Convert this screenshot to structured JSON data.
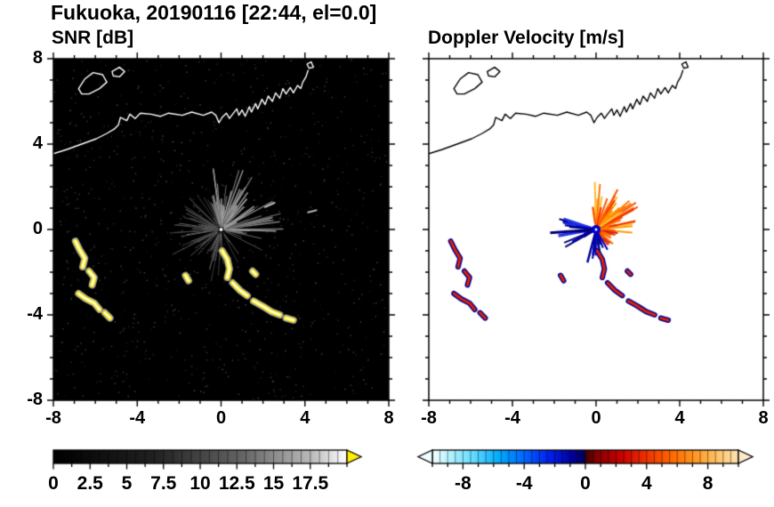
{
  "title": "Fukuoka, 20190116 [22:44, el=0.0]",
  "coastline": {
    "main": [
      [
        -8,
        3.55
      ],
      [
        -7.35,
        3.75
      ],
      [
        -6.65,
        4.0
      ],
      [
        -5.95,
        4.25
      ],
      [
        -5.45,
        4.5
      ],
      [
        -5.1,
        4.7
      ],
      [
        -4.9,
        4.9
      ],
      [
        -4.8,
        5.25
      ],
      [
        -4.5,
        5.1
      ],
      [
        -4.35,
        5.4
      ],
      [
        -4.1,
        5.2
      ],
      [
        -3.85,
        5.45
      ],
      [
        -3.35,
        5.4
      ],
      [
        -2.9,
        5.3
      ],
      [
        -2.5,
        5.45
      ],
      [
        -1.85,
        5.35
      ],
      [
        -1.4,
        5.5
      ],
      [
        -0.85,
        5.35
      ],
      [
        -0.45,
        5.5
      ],
      [
        -0.25,
        5.35
      ],
      [
        -0.1,
        5.0
      ],
      [
        0.05,
        5.25
      ],
      [
        0.25,
        5.45
      ],
      [
        0.4,
        5.2
      ],
      [
        0.55,
        5.4
      ],
      [
        0.75,
        5.65
      ],
      [
        0.85,
        5.35
      ],
      [
        1.0,
        5.6
      ],
      [
        1.15,
        5.3
      ],
      [
        1.35,
        5.75
      ],
      [
        1.45,
        5.5
      ],
      [
        1.65,
        5.9
      ],
      [
        1.75,
        5.65
      ],
      [
        1.95,
        6.1
      ],
      [
        2.1,
        5.85
      ],
      [
        2.25,
        6.25
      ],
      [
        2.45,
        6.0
      ],
      [
        2.6,
        6.4
      ],
      [
        2.8,
        6.15
      ],
      [
        2.95,
        6.6
      ],
      [
        3.1,
        6.35
      ],
      [
        3.3,
        6.65
      ],
      [
        3.45,
        6.4
      ],
      [
        3.65,
        6.75
      ],
      [
        3.8,
        6.6
      ],
      [
        3.9,
        6.9
      ],
      [
        4.05,
        7.15
      ],
      [
        4.15,
        7.45
      ]
    ],
    "islands": [
      [
        [
          -6.8,
          6.6
        ],
        [
          -6.5,
          7.05
        ],
        [
          -6.1,
          7.35
        ],
        [
          -5.65,
          7.25
        ],
        [
          -5.45,
          6.9
        ],
        [
          -5.8,
          6.6
        ],
        [
          -6.3,
          6.35
        ],
        [
          -6.65,
          6.35
        ]
      ],
      [
        [
          -5.2,
          7.4
        ],
        [
          -4.85,
          7.6
        ],
        [
          -4.6,
          7.4
        ],
        [
          -4.85,
          7.15
        ],
        [
          -5.15,
          7.2
        ]
      ],
      [
        [
          4.1,
          7.75
        ],
        [
          4.3,
          7.85
        ],
        [
          4.4,
          7.6
        ],
        [
          4.2,
          7.55
        ]
      ]
    ]
  },
  "echoes": [
    {
      "pts": [
        [
          -6.95,
          -0.55
        ],
        [
          -6.75,
          -0.95
        ],
        [
          -6.5,
          -1.35
        ],
        [
          -6.6,
          -1.75
        ]
      ]
    },
    {
      "pts": [
        [
          -6.3,
          -1.95
        ],
        [
          -6.05,
          -2.25
        ],
        [
          -6.15,
          -2.6
        ]
      ]
    },
    {
      "pts": [
        [
          -6.8,
          -3.0
        ],
        [
          -6.45,
          -3.25
        ],
        [
          -6.05,
          -3.45
        ],
        [
          -5.8,
          -3.75
        ]
      ]
    },
    {
      "pts": [
        [
          -5.55,
          -3.9
        ],
        [
          -5.3,
          -4.15
        ]
      ]
    },
    {
      "pts": [
        [
          0.05,
          -1.0
        ],
        [
          0.3,
          -1.4
        ],
        [
          0.4,
          -1.85
        ],
        [
          0.3,
          -2.25
        ]
      ]
    },
    {
      "pts": [
        [
          0.55,
          -2.5
        ],
        [
          0.9,
          -2.85
        ],
        [
          1.25,
          -3.1
        ]
      ]
    },
    {
      "pts": [
        [
          1.55,
          -3.35
        ],
        [
          2.0,
          -3.6
        ],
        [
          2.4,
          -3.85
        ],
        [
          2.8,
          -4.0
        ]
      ]
    },
    {
      "pts": [
        [
          3.1,
          -4.15
        ],
        [
          3.45,
          -4.25
        ]
      ]
    },
    {
      "pts": [
        [
          -1.7,
          -2.15
        ],
        [
          -1.55,
          -2.4
        ]
      ]
    },
    {
      "pts": [
        [
          1.5,
          -1.95
        ],
        [
          1.65,
          -2.1
        ]
      ]
    }
  ],
  "chart_data": [
    {
      "type": "heatmap",
      "title": "SNR [dB]",
      "xlim": [
        -8,
        8
      ],
      "ylim": [
        -8,
        8
      ],
      "xticks": [
        -8,
        -4,
        0,
        4,
        8
      ],
      "yticks": [
        8,
        4,
        0,
        -4,
        -8
      ],
      "minor_tick_step": 1,
      "background": "#000000",
      "coast_color": "#ffffff",
      "noise": {
        "n": 900,
        "seed": 5,
        "gray": [
          15,
          70
        ]
      },
      "fan": [
        {
          "n": 70,
          "a0": 0,
          "a1": 360,
          "len": [
            0.5,
            2.2
          ],
          "gray": [
            50,
            115
          ],
          "lw": 1,
          "seed": 11
        },
        {
          "n": 55,
          "a0": -10,
          "a1": 110,
          "len": [
            0.8,
            3.0
          ],
          "gray": [
            90,
            175
          ],
          "lw": 1.4,
          "seed": 23
        },
        {
          "n": 14,
          "a0": 150,
          "a1": 260,
          "len": [
            1.2,
            2.6
          ],
          "gray": [
            45,
            95
          ],
          "lw": 1,
          "seed": 37
        }
      ],
      "echo_style": {
        "fringe": "#9a9a9a",
        "fringe_lw": 8,
        "body": "#ffee00",
        "body_lw": 5,
        "core": "#ffffff",
        "core_lw": 2
      },
      "dashes": [
        {
          "pts": [
            [
              2.1,
              1.05
            ],
            [
              2.55,
              1.25
            ]
          ]
        },
        {
          "pts": [
            [
              4.15,
              0.8
            ],
            [
              4.55,
              0.9
            ]
          ]
        }
      ],
      "dash_color": "#bbbbbb",
      "center_marker": {
        "color": "#ffffff",
        "r": 2
      },
      "colorbar": {
        "range": [
          0,
          20
        ],
        "ticks": [
          0,
          2.5,
          5,
          7.5,
          10,
          12.5,
          15,
          17.5
        ],
        "minor_step": 1.25,
        "segments": 32,
        "stops": [
          [
            0,
            "#000000"
          ],
          [
            0.35,
            "#222222"
          ],
          [
            0.65,
            "#666666"
          ],
          [
            0.88,
            "#bbbbbb"
          ],
          [
            1,
            "#ffffff"
          ]
        ],
        "arrow_left": null,
        "arrow_right": "#ffee00"
      }
    },
    {
      "type": "heatmap",
      "title": "Doppler Velocity [m/s]",
      "xlim": [
        -8,
        8
      ],
      "ylim": [
        -8,
        8
      ],
      "xticks": [
        -8,
        -4,
        0,
        4,
        8
      ],
      "yticks": [
        8,
        4,
        0,
        -4,
        -8
      ],
      "minor_tick_step": 1,
      "background": "#ffffff",
      "coast_color": "#000000",
      "fan": [
        {
          "n": 60,
          "a0": -5,
          "a1": 100,
          "len": [
            0.4,
            2.3
          ],
          "colors": [
            "#ff5500",
            "#ff7700",
            "#ff9900",
            "#ee3300",
            "#ffbb33"
          ],
          "lw": 2,
          "seed": 51
        },
        {
          "n": 16,
          "a0": -60,
          "a1": -5,
          "len": [
            0.3,
            1.3
          ],
          "colors": [
            "#ff6600",
            "#dd2200"
          ],
          "lw": 2,
          "seed": 52
        },
        {
          "n": 26,
          "a0": 158,
          "a1": 218,
          "len": [
            0.4,
            1.9
          ],
          "colors": [
            "#0000bb",
            "#000077",
            "#2233ee"
          ],
          "lw": 2,
          "seed": 53
        },
        {
          "n": 10,
          "a0": 252,
          "a1": 292,
          "len": [
            0.4,
            1.6
          ],
          "colors": [
            "#0000bb",
            "#000088"
          ],
          "lw": 2,
          "seed": 54
        }
      ],
      "extra_rays": [
        {
          "a": 184,
          "len": 2.2,
          "color": "#000077",
          "lw": 3
        },
        {
          "a": 255,
          "len": 1.6,
          "color": "#000099",
          "lw": 2.5
        },
        {
          "a": 300,
          "len": 1.1,
          "color": "#0000bb",
          "lw": 2
        }
      ],
      "echo_style": {
        "fringe": "#000099",
        "fringe_lw": 6,
        "body": "#dd2200",
        "body_lw": 3,
        "core": null,
        "core_lw": 0
      },
      "center_marker": {
        "color": "#0000cc",
        "r": 5,
        "inner": "#ffffff"
      },
      "colorbar": {
        "range": [
          -10,
          10
        ],
        "ticks": [
          -8,
          -4,
          0,
          4,
          8
        ],
        "minor_step": 1,
        "segments": 40,
        "stops": [
          [
            0,
            "#f5ffff"
          ],
          [
            0.05,
            "#bbf4ff"
          ],
          [
            0.13,
            "#66ddff"
          ],
          [
            0.22,
            "#00aaff"
          ],
          [
            0.3,
            "#0066ff"
          ],
          [
            0.38,
            "#0022ee"
          ],
          [
            0.46,
            "#000099"
          ],
          [
            0.499,
            "#000055"
          ],
          [
            0.501,
            "#440000"
          ],
          [
            0.54,
            "#880000"
          ],
          [
            0.62,
            "#cc0000"
          ],
          [
            0.7,
            "#ee3300"
          ],
          [
            0.78,
            "#ff6600"
          ],
          [
            0.86,
            "#ff9922"
          ],
          [
            0.93,
            "#ffc266"
          ],
          [
            1,
            "#ffe2b0"
          ]
        ],
        "arrow_left": "#eeffff",
        "arrow_right": "#ffe9c9"
      }
    }
  ]
}
